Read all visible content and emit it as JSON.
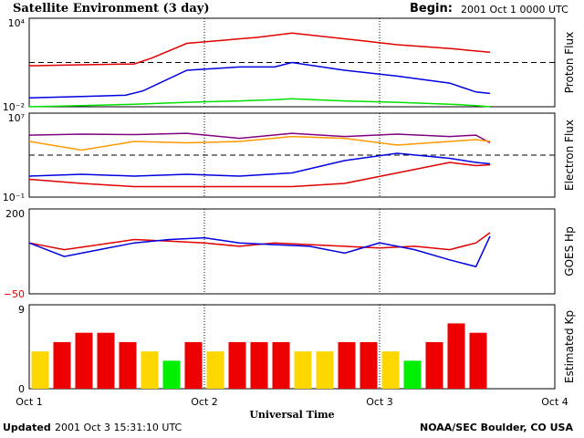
{
  "header": {
    "title": "Satellite Environment (3 day)",
    "begin_label": "Begin:",
    "begin_value": "2001 Oct 1 0000 UTC"
  },
  "footer": {
    "updated_label": "Updated",
    "updated_value": "2001 Oct  3 15:31:10 UTC",
    "credit": "NOAA/SEC Boulder, CO USA"
  },
  "chart_data": [
    {
      "type": "line",
      "panel": "proton",
      "ylabel": "Proton Flux",
      "log_scale": true,
      "ylim": [
        0.01,
        10000
      ],
      "y_tick_labels": [
        "10⁴",
        "10⁻²"
      ],
      "xlim_days": [
        0,
        3
      ],
      "threshold": 10,
      "series": [
        {
          "color": "#e00000",
          "x": [
            0,
            0.3,
            0.6,
            0.7,
            0.9,
            1.1,
            1.3,
            1.5,
            1.9,
            2.1,
            2.4,
            2.55,
            2.63
          ],
          "y": [
            6,
            7,
            8,
            20,
            200,
            320,
            500,
            1000,
            300,
            160,
            90,
            60,
            50
          ]
        },
        {
          "color": "#0000e0",
          "x": [
            0,
            0.3,
            0.55,
            0.65,
            0.9,
            1.2,
            1.4,
            1.5,
            1.8,
            2.1,
            2.4,
            2.55,
            2.63
          ],
          "y": [
            0.04,
            0.05,
            0.06,
            0.12,
            3,
            5,
            5,
            10,
            3,
            1.2,
            0.4,
            0.1,
            0.08
          ]
        },
        {
          "color": "#00e000",
          "x": [
            0,
            0.3,
            0.6,
            0.9,
            1.2,
            1.4,
            1.5,
            1.8,
            2.1,
            2.4,
            2.55,
            2.63
          ],
          "y": [
            0.01,
            0.012,
            0.015,
            0.02,
            0.025,
            0.03,
            0.035,
            0.025,
            0.02,
            0.015,
            0.012,
            0.01
          ]
        }
      ]
    },
    {
      "type": "line",
      "panel": "electron",
      "ylabel": "Electron Flux",
      "log_scale": true,
      "ylim": [
        0.1,
        10000000
      ],
      "y_tick_labels": [
        "10⁷",
        "10⁻¹"
      ],
      "xlim_days": [
        0,
        3
      ],
      "threshold": 1000,
      "series": [
        {
          "color": "#800080",
          "x": [
            0,
            0.3,
            0.6,
            0.9,
            1.2,
            1.5,
            1.8,
            2.1,
            2.4,
            2.55,
            2.63
          ],
          "y": [
            80000,
            100000,
            90000,
            120000,
            40000,
            120000,
            60000,
            100000,
            60000,
            80000,
            15000
          ]
        },
        {
          "color": "#ff9900",
          "x": [
            0,
            0.3,
            0.6,
            0.9,
            1.2,
            1.5,
            1.8,
            2.1,
            2.4,
            2.55,
            2.63
          ],
          "y": [
            20000,
            3000,
            20000,
            15000,
            20000,
            60000,
            40000,
            9000,
            20000,
            30000,
            20000
          ]
        },
        {
          "color": "#e00000",
          "x": [
            0,
            0.3,
            0.6,
            0.9,
            1.2,
            1.5,
            1.8,
            2.1,
            2.4,
            2.55,
            2.63
          ],
          "y": [
            5,
            2,
            1,
            1,
            1,
            1,
            2,
            20,
            200,
            100,
            120
          ]
        },
        {
          "color": "#0000e0",
          "x": [
            0,
            0.3,
            0.6,
            0.9,
            1.2,
            1.5,
            1.8,
            2.1,
            2.4,
            2.55,
            2.63
          ],
          "y": [
            10,
            15,
            10,
            15,
            10,
            20,
            300,
            1500,
            500,
            200,
            150
          ]
        }
      ]
    },
    {
      "type": "line",
      "panel": "hp",
      "ylabel": "GOES Hp",
      "ylim": [
        -50,
        200
      ],
      "y_tick_labels": [
        "200",
        "−50"
      ],
      "xlim_days": [
        0,
        3
      ],
      "series": [
        {
          "color": "#e00000",
          "x": [
            0,
            0.2,
            0.4,
            0.6,
            0.8,
            1.0,
            1.2,
            1.4,
            1.6,
            1.8,
            2.0,
            2.2,
            2.4,
            2.55,
            2.63
          ],
          "y": [
            100,
            80,
            95,
            110,
            105,
            100,
            90,
            100,
            95,
            90,
            85,
            90,
            80,
            100,
            130
          ]
        },
        {
          "color": "#0000e0",
          "x": [
            0,
            0.2,
            0.4,
            0.6,
            0.8,
            1.0,
            1.2,
            1.4,
            1.6,
            1.8,
            2.0,
            2.2,
            2.4,
            2.55,
            2.63
          ],
          "y": [
            100,
            60,
            80,
            100,
            110,
            115,
            100,
            95,
            90,
            70,
            100,
            80,
            50,
            30,
            120
          ]
        }
      ]
    },
    {
      "type": "bar",
      "panel": "kp",
      "ylabel": "Estimated Kp",
      "ylim": [
        0,
        9
      ],
      "y_tick_labels": [
        "9",
        "0"
      ],
      "values": [
        4,
        5,
        6,
        6,
        5,
        4,
        3,
        5,
        4,
        5,
        5,
        5,
        4,
        4,
        5,
        5,
        4,
        3,
        5,
        7,
        6
      ],
      "colors": {
        "green": "#00ee00",
        "yellow": "#ffd700",
        "red": "#ee0000"
      }
    }
  ],
  "x_axis": {
    "tick_labels": [
      "Oct 1",
      "Oct 2",
      "Oct 3",
      "Oct 4"
    ],
    "xlabel": "Universal Time"
  },
  "colors": {
    "threshold": "#000000",
    "frame": "#000000",
    "day_divider": "#000000"
  }
}
